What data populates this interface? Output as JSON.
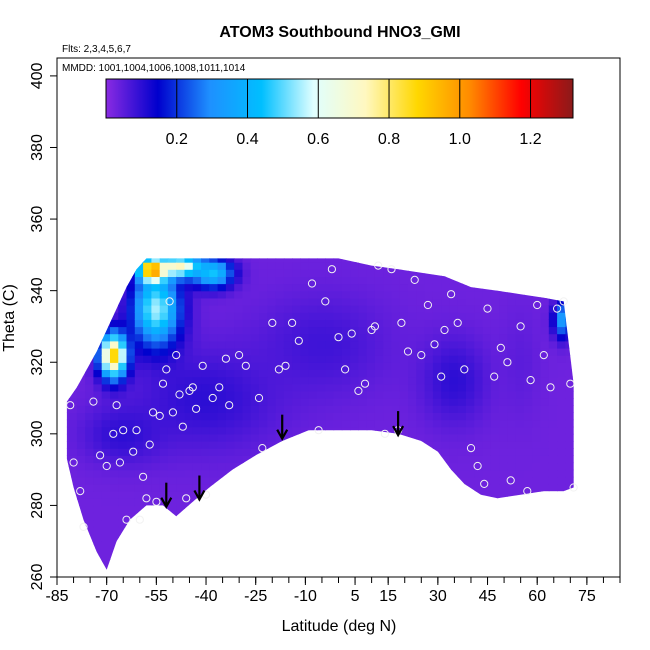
{
  "chart_data": {
    "type": "heatmap",
    "title": "ATOM3 Southbound HNO3_GMI",
    "subtitle_flights": "Flts: 2,3,4,5,6,7",
    "subtitle_dates": "MMDD: 1001,1004,1006,1008,1011,1014",
    "xlabel": "Latitude (deg N)",
    "ylabel": "Theta (C)",
    "xlim": [
      -85,
      85
    ],
    "ylim": [
      260,
      405
    ],
    "x_tick_labels": [
      "-85",
      "-70",
      "-55",
      "-40",
      "-25",
      "-10",
      "5",
      "15",
      "30",
      "45",
      "60",
      "75"
    ],
    "x_tick_values": [
      -85,
      -70,
      -55,
      -40,
      -25,
      -10,
      5,
      15,
      30,
      45,
      60,
      75
    ],
    "x_minor_step": 5,
    "y_ticks": [
      260,
      280,
      300,
      320,
      340,
      360,
      380,
      400
    ],
    "colorbar": {
      "range": [
        0,
        1.32
      ],
      "ticks": [
        0.2,
        0.4,
        0.6,
        0.8,
        1.0,
        1.2
      ],
      "tick_labels": [
        "0.2",
        "0.4",
        "0.6",
        "0.8",
        "1.0",
        "1.2"
      ],
      "position": "top",
      "colors": [
        "#8a2be2",
        "#0000cd",
        "#1e90ff",
        "#00bfff",
        "#e0ffff",
        "#fff8c0",
        "#ffd700",
        "#ff8c00",
        "#ff0000",
        "#8b1a1a"
      ]
    },
    "domain_top": [
      [
        -82,
        309
      ],
      [
        -79,
        313
      ],
      [
        -76,
        318
      ],
      [
        -73,
        323
      ],
      [
        -70,
        329
      ],
      [
        -67,
        335
      ],
      [
        -64,
        341
      ],
      [
        -61,
        346
      ],
      [
        -58,
        349
      ],
      [
        -50,
        349
      ],
      [
        -40,
        349
      ],
      [
        -30,
        349
      ],
      [
        -20,
        349
      ],
      [
        -10,
        349
      ],
      [
        0,
        349
      ],
      [
        10,
        347
      ],
      [
        18,
        346
      ],
      [
        25,
        345
      ],
      [
        32,
        344
      ],
      [
        40,
        341
      ],
      [
        48,
        340
      ],
      [
        55,
        339
      ],
      [
        62,
        338
      ],
      [
        68,
        337
      ],
      [
        71,
        314
      ]
    ],
    "domain_bottom": [
      [
        -82,
        293
      ],
      [
        -80,
        285
      ],
      [
        -77,
        276
      ],
      [
        -73,
        267
      ],
      [
        -70,
        262
      ],
      [
        -67,
        270
      ],
      [
        -63,
        276
      ],
      [
        -58,
        280
      ],
      [
        -53,
        280
      ],
      [
        -49,
        277
      ],
      [
        -44,
        281
      ],
      [
        -39,
        285
      ],
      [
        -32,
        290
      ],
      [
        -25,
        294
      ],
      [
        -17,
        298
      ],
      [
        -9,
        301
      ],
      [
        0,
        301
      ],
      [
        10,
        301
      ],
      [
        18,
        300
      ],
      [
        25,
        298
      ],
      [
        30,
        295
      ],
      [
        34,
        290
      ],
      [
        38,
        286
      ],
      [
        43,
        283
      ],
      [
        48,
        282
      ],
      [
        55,
        283
      ],
      [
        62,
        284
      ],
      [
        68,
        284
      ],
      [
        71,
        285
      ]
    ],
    "field_blobs": [
      {
        "lat": -40,
        "theta": 310,
        "value": 0.1,
        "sx": 22,
        "sy": 14
      },
      {
        "lat": -65,
        "theta": 300,
        "value": 0.1,
        "sx": 12,
        "sy": 8
      },
      {
        "lat": -5,
        "theta": 325,
        "value": 0.08,
        "sx": 20,
        "sy": 14
      },
      {
        "lat": 35,
        "theta": 315,
        "value": 0.1,
        "sx": 10,
        "sy": 12
      },
      {
        "lat": 55,
        "theta": 320,
        "value": 0.05,
        "sx": 6,
        "sy": 15
      },
      {
        "lat": 68,
        "theta": 332,
        "value": 0.35,
        "sx": 3,
        "sy": 5
      },
      {
        "lat": -55,
        "theta": 335,
        "value": 0.55,
        "sx": 7,
        "sy": 10
      },
      {
        "lat": -68,
        "theta": 322,
        "value": 0.9,
        "sx": 4,
        "sy": 6
      },
      {
        "lat": -56,
        "theta": 346,
        "value": 1.15,
        "sx": 4,
        "sy": 3
      },
      {
        "lat": -48,
        "theta": 347,
        "value": 0.75,
        "sx": 7,
        "sy": 3
      },
      {
        "lat": -38,
        "theta": 345,
        "value": 0.45,
        "sx": 6,
        "sy": 4
      }
    ],
    "observations": [
      [
        -81,
        308
      ],
      [
        -80,
        292
      ],
      [
        -78,
        284
      ],
      [
        -77,
        274
      ],
      [
        -74,
        309
      ],
      [
        -72,
        294
      ],
      [
        -70,
        291
      ],
      [
        -68,
        300
      ],
      [
        -67,
        308
      ],
      [
        -66,
        292
      ],
      [
        -65,
        301
      ],
      [
        -64,
        276
      ],
      [
        -62,
        295
      ],
      [
        -61,
        301
      ],
      [
        -60,
        276
      ],
      [
        -59,
        288
      ],
      [
        -58,
        282
      ],
      [
        -57,
        297
      ],
      [
        -56,
        306
      ],
      [
        -55,
        281
      ],
      [
        -54,
        305
      ],
      [
        -53,
        314
      ],
      [
        -52,
        318
      ],
      [
        -51,
        337
      ],
      [
        -50,
        306
      ],
      [
        -49,
        322
      ],
      [
        -48,
        311
      ],
      [
        -47,
        302
      ],
      [
        -46,
        282
      ],
      [
        -45,
        312
      ],
      [
        -44,
        313
      ],
      [
        -43,
        307
      ],
      [
        -41,
        319
      ],
      [
        -40,
        283
      ],
      [
        -38,
        310
      ],
      [
        -36,
        313
      ],
      [
        -34,
        321
      ],
      [
        -33,
        308
      ],
      [
        -30,
        322
      ],
      [
        -28,
        319
      ],
      [
        -24,
        310
      ],
      [
        -23,
        296
      ],
      [
        -20,
        331
      ],
      [
        -18,
        318
      ],
      [
        -16,
        319
      ],
      [
        -14,
        331
      ],
      [
        -12,
        326
      ],
      [
        -8,
        342
      ],
      [
        -6,
        301
      ],
      [
        -4,
        337
      ],
      [
        -2,
        346
      ],
      [
        0,
        327
      ],
      [
        2,
        318
      ],
      [
        4,
        328
      ],
      [
        6,
        312
      ],
      [
        8,
        314
      ],
      [
        10,
        329
      ],
      [
        11,
        330
      ],
      [
        12,
        347
      ],
      [
        14,
        300
      ],
      [
        16,
        346
      ],
      [
        18,
        301
      ],
      [
        19,
        331
      ],
      [
        21,
        323
      ],
      [
        23,
        343
      ],
      [
        25,
        322
      ],
      [
        27,
        336
      ],
      [
        29,
        325
      ],
      [
        31,
        316
      ],
      [
        32,
        329
      ],
      [
        34,
        339
      ],
      [
        36,
        331
      ],
      [
        38,
        318
      ],
      [
        40,
        296
      ],
      [
        42,
        291
      ],
      [
        44,
        286
      ],
      [
        45,
        335
      ],
      [
        47,
        316
      ],
      [
        49,
        324
      ],
      [
        51,
        320
      ],
      [
        52,
        287
      ],
      [
        55,
        330
      ],
      [
        57,
        284
      ],
      [
        58,
        315
      ],
      [
        60,
        336
      ],
      [
        62,
        322
      ],
      [
        64,
        313
      ],
      [
        66,
        335
      ],
      [
        68,
        337
      ],
      [
        70,
        314
      ],
      [
        71,
        285
      ]
    ],
    "arrows": [
      [
        -52,
        283
      ],
      [
        -42,
        285
      ],
      [
        -17,
        302
      ],
      [
        18,
        303
      ]
    ]
  }
}
